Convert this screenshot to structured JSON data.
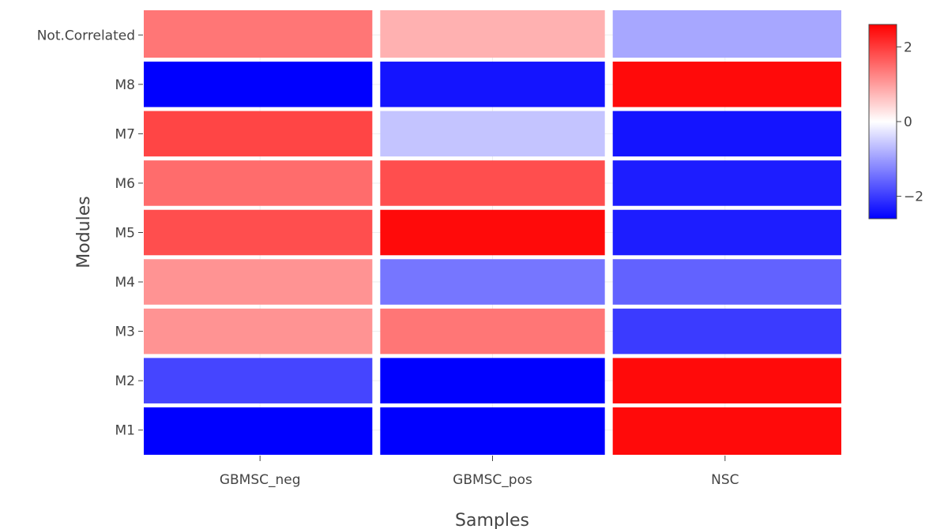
{
  "chart_data": {
    "type": "heatmap",
    "title": "",
    "xlabel": "Samples",
    "ylabel": "Modules",
    "x_categories": [
      "GBMSC_neg",
      "GBMSC_pos",
      "NSC"
    ],
    "y_categories": [
      "M1",
      "M2",
      "M3",
      "M4",
      "M5",
      "M6",
      "M7",
      "M8",
      "Not.Correlated"
    ],
    "values": [
      [
        -2.6,
        -2.6,
        2.5
      ],
      [
        -1.9,
        -2.6,
        2.5
      ],
      [
        1.1,
        1.4,
        -2.0
      ],
      [
        1.1,
        -1.4,
        -1.6
      ],
      [
        1.8,
        2.5,
        -2.3
      ],
      [
        1.5,
        1.8,
        -2.3
      ],
      [
        1.9,
        -0.6,
        -2.4
      ],
      [
        -2.6,
        -2.4,
        2.5
      ],
      [
        1.4,
        0.8,
        -0.9
      ]
    ],
    "colorscale": {
      "min": -2.6,
      "max": 2.6,
      "low_color": "#0000ff",
      "mid_color": "#ffffff",
      "high_color": "#ff0000",
      "ticks": [
        2,
        0,
        -2
      ],
      "tick_labels": [
        "2",
        "0",
        "−2"
      ]
    },
    "grid": true,
    "legend": "colorbar right"
  }
}
